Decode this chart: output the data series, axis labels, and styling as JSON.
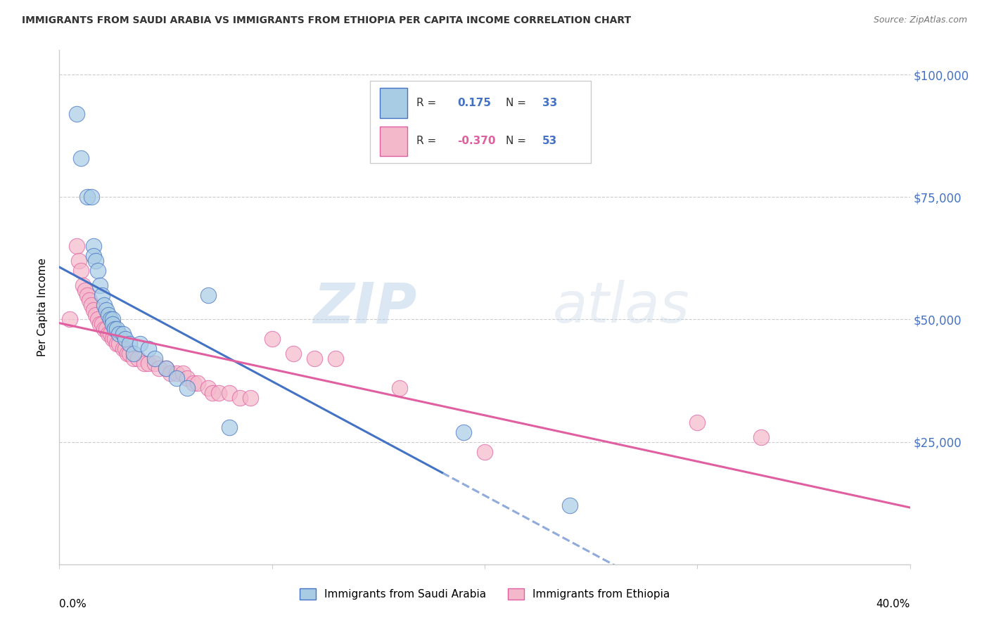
{
  "title": "IMMIGRANTS FROM SAUDI ARABIA VS IMMIGRANTS FROM ETHIOPIA PER CAPITA INCOME CORRELATION CHART",
  "source": "Source: ZipAtlas.com",
  "ylabel": "Per Capita Income",
  "yticks": [
    0,
    25000,
    50000,
    75000,
    100000
  ],
  "ytick_labels": [
    "",
    "$25,000",
    "$50,000",
    "$75,000",
    "$100,000"
  ],
  "xlim": [
    0.0,
    0.4
  ],
  "ylim": [
    0,
    105000
  ],
  "color_saudi": "#a8cce4",
  "color_ethiopia": "#f4b8cb",
  "color_line_saudi": "#4472c4",
  "color_line_ethiopia": "#e05fa0",
  "watermark_zip": "ZIP",
  "watermark_atlas": "atlas",
  "saudi_x": [
    0.008,
    0.01,
    0.013,
    0.015,
    0.016,
    0.016,
    0.017,
    0.018,
    0.019,
    0.02,
    0.021,
    0.022,
    0.023,
    0.024,
    0.025,
    0.025,
    0.026,
    0.027,
    0.028,
    0.03,
    0.031,
    0.033,
    0.035,
    0.038,
    0.042,
    0.045,
    0.05,
    0.055,
    0.06,
    0.07,
    0.08,
    0.19,
    0.24
  ],
  "saudi_y": [
    92000,
    83000,
    75000,
    75000,
    65000,
    63000,
    62000,
    60000,
    57000,
    55000,
    53000,
    52000,
    51000,
    50000,
    50000,
    49000,
    48000,
    48000,
    47000,
    47000,
    46000,
    45000,
    43000,
    45000,
    44000,
    42000,
    40000,
    38000,
    36000,
    55000,
    28000,
    27000,
    12000
  ],
  "ethiopia_x": [
    0.005,
    0.008,
    0.009,
    0.01,
    0.011,
    0.012,
    0.013,
    0.014,
    0.015,
    0.016,
    0.017,
    0.018,
    0.019,
    0.02,
    0.021,
    0.022,
    0.023,
    0.024,
    0.025,
    0.026,
    0.027,
    0.028,
    0.03,
    0.031,
    0.032,
    0.033,
    0.035,
    0.037,
    0.04,
    0.042,
    0.045,
    0.047,
    0.05,
    0.052,
    0.055,
    0.058,
    0.06,
    0.063,
    0.065,
    0.07,
    0.072,
    0.075,
    0.08,
    0.085,
    0.09,
    0.1,
    0.11,
    0.12,
    0.13,
    0.16,
    0.2,
    0.3,
    0.33
  ],
  "ethiopia_y": [
    50000,
    65000,
    62000,
    60000,
    57000,
    56000,
    55000,
    54000,
    53000,
    52000,
    51000,
    50000,
    49000,
    49000,
    48000,
    48000,
    47000,
    47000,
    46000,
    46000,
    45000,
    45000,
    44000,
    44000,
    43000,
    43000,
    42000,
    42000,
    41000,
    41000,
    41000,
    40000,
    40000,
    39000,
    39000,
    39000,
    38000,
    37000,
    37000,
    36000,
    35000,
    35000,
    35000,
    34000,
    34000,
    46000,
    43000,
    42000,
    42000,
    36000,
    23000,
    29000,
    26000
  ]
}
